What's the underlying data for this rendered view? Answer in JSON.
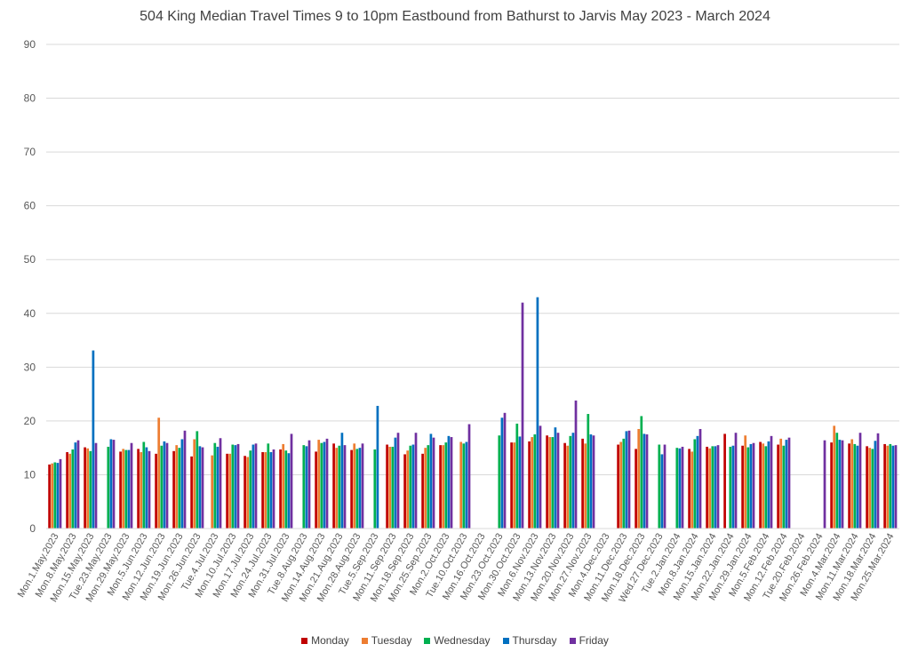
{
  "chart_data": {
    "type": "bar",
    "title": "504 King Median Travel Times 9 to 10pm Eastbound from Bathurst to Jarvis May 2023 - March 2024",
    "xlabel": "",
    "ylabel": "",
    "ylim": [
      0,
      90
    ],
    "yticks": [
      "0",
      "10",
      "20",
      "30",
      "40",
      "50",
      "60",
      "70",
      "80",
      "90"
    ],
    "grid": true,
    "legend_position": "bottom",
    "series_colors": [
      "#c00000",
      "#ed7d31",
      "#00b050",
      "#0070c0",
      "#7030a0"
    ],
    "categories": [
      "Mon.1.May.2023",
      "Mon.8.May.2023",
      "Mon.15.May.2023",
      "Tue.23.May.2023",
      "Mon.29.May.2023",
      "Mon.5.Jun.2023",
      "Mon.12.Jun.2023",
      "Mon.19.Jun.2023",
      "Mon.26.Jun.2023",
      "Tue.4.Jul.2023",
      "Mon.10.Jul.2023",
      "Mon.17.Jul.2023",
      "Mon.24.Jul.2023",
      "Mon.31.Jul.2023",
      "Tue.8.Aug.2023",
      "Mon.14.Aug.2023",
      "Mon.21.Aug.2023",
      "Mon.28.Aug.2023",
      "Tue.5.Sep.2023",
      "Mon.11.Sep.2023",
      "Mon.18.Sep.2023",
      "Mon.25.Sep.2023",
      "Mon.2.Oct.2023",
      "Tue.10.Oct.2023",
      "Mon.16.Oct.2023",
      "Mon.23.Oct.2023",
      "Mon.30.Oct.2023",
      "Mon.6.Nov.2023",
      "Mon.13.Nov.2023",
      "Mon.20.Nov.2023",
      "Mon.27.Nov.2023",
      "Mon.4.Dec.2023",
      "Mon.11.Dec.2023",
      "Mon.18.Dec.2023",
      "Wed.27.Dec.2023",
      "Tue.2.Jan.2024",
      "Mon.8.Jan.2024",
      "Mon.15.Jan.2024",
      "Mon.22.Jan.2024",
      "Mon.29.Jan.2024",
      "Mon.5.Feb.2024",
      "Mon.12.Feb.2024",
      "Tue.20.Feb.2024",
      "Mon.26.Feb.2024",
      "Mon.4.Mar.2024",
      "Mon.11.Mar.2024",
      "Mon.18.Mar.2024",
      "Mon.25.Mar.2024"
    ],
    "series": [
      {
        "name": "Monday",
        "values": [
          11.9,
          14.2,
          15.1,
          null,
          14.3,
          14.8,
          13.9,
          14.4,
          13.4,
          null,
          13.9,
          13.5,
          14.2,
          14.7,
          null,
          14.3,
          15.8,
          14.6,
          null,
          15.6,
          13.8,
          13.9,
          15.5,
          null,
          null,
          null,
          16.0,
          16.2,
          17.3,
          15.9,
          16.7,
          null,
          15.6,
          14.8,
          null,
          null,
          14.8,
          15.2,
          17.6,
          15.4,
          16.1,
          15.6,
          null,
          null,
          16.0,
          15.8,
          15.3,
          15.7
        ]
      },
      {
        "name": "Tuesday",
        "values": [
          12.1,
          13.9,
          14.9,
          null,
          14.8,
          14.2,
          20.6,
          15.5,
          16.6,
          13.6,
          13.9,
          13.3,
          14.2,
          15.7,
          null,
          16.5,
          15.0,
          15.8,
          null,
          15.2,
          14.5,
          15.0,
          15.5,
          16.1,
          null,
          null,
          16.0,
          17.0,
          17.0,
          15.4,
          15.8,
          null,
          16.1,
          18.5,
          null,
          null,
          14.3,
          14.9,
          null,
          17.3,
          15.8,
          16.7,
          null,
          null,
          19.1,
          16.6,
          15.0,
          15.4
        ]
      },
      {
        "name": "Wednesday",
        "values": [
          12.3,
          14.7,
          14.4,
          15.2,
          14.6,
          16.1,
          15.4,
          15.0,
          18.1,
          15.9,
          15.6,
          14.5,
          15.8,
          14.5,
          15.5,
          15.9,
          15.4,
          14.8,
          14.7,
          15.2,
          15.4,
          15.5,
          16.0,
          15.8,
          null,
          17.3,
          19.5,
          17.5,
          17.0,
          17.2,
          21.3,
          null,
          16.7,
          20.9,
          15.6,
          15.0,
          16.6,
          15.3,
          15.2,
          15.1,
          15.3,
          15.4,
          null,
          null,
          17.8,
          15.7,
          14.8,
          15.7
        ]
      },
      {
        "name": "Thursday",
        "values": [
          12.2,
          16.0,
          33.1,
          16.6,
          14.6,
          15.1,
          16.2,
          16.6,
          15.3,
          15.2,
          15.5,
          15.6,
          14.2,
          14.0,
          15.3,
          16.1,
          17.8,
          15.0,
          22.8,
          16.9,
          15.6,
          17.6,
          17.2,
          16.1,
          null,
          20.6,
          17.1,
          43.0,
          18.8,
          17.8,
          17.5,
          null,
          18.1,
          17.6,
          13.8,
          14.9,
          17.2,
          15.3,
          15.4,
          15.7,
          16.2,
          16.5,
          null,
          null,
          16.5,
          15.4,
          16.3,
          15.4
        ]
      },
      {
        "name": "Friday",
        "values": [
          12.9,
          16.4,
          15.9,
          16.5,
          15.9,
          14.4,
          15.9,
          18.2,
          15.1,
          16.8,
          15.7,
          15.8,
          14.7,
          17.6,
          16.4,
          16.7,
          15.5,
          15.8,
          null,
          17.8,
          17.8,
          16.9,
          17.0,
          19.4,
          null,
          21.5,
          42.0,
          19.1,
          17.8,
          23.8,
          17.3,
          null,
          18.2,
          17.5,
          15.6,
          15.2,
          18.5,
          15.5,
          17.8,
          15.9,
          17.2,
          16.9,
          null,
          16.4,
          16.4,
          17.8,
          17.7,
          15.5
        ]
      }
    ]
  }
}
